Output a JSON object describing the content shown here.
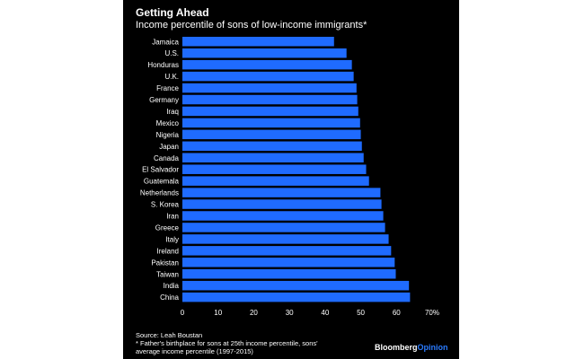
{
  "header": {
    "title": "Getting Ahead",
    "subtitle": "Income percentile of sons of low-income immigrants*"
  },
  "footer": {
    "source": "Source: Leah Boustan",
    "note": "* Father's birthplace for sons at 25th income percentile, sons' average income percentile (1997-2015)",
    "brand_main": "Bloomberg",
    "brand_accent": "Opinion"
  },
  "colors": {
    "background": "#000000",
    "bar": "#1f6bff",
    "text": "#ffffff",
    "brand_accent": "#2a7bff"
  },
  "chart_data": {
    "type": "bar",
    "orientation": "horizontal",
    "title": "Getting Ahead",
    "subtitle": "Income percentile of sons of low-income immigrants*",
    "xlabel": "",
    "ylabel": "",
    "xlim": [
      0,
      70
    ],
    "tick_values": [
      0,
      10,
      20,
      30,
      40,
      50,
      60,
      70
    ],
    "tick_labels": [
      "0",
      "10",
      "20",
      "30",
      "40",
      "50",
      "60",
      "70%"
    ],
    "grid": false,
    "categories": [
      "Jamaica",
      "U.S.",
      "Honduras",
      "U.K.",
      "France",
      "Germany",
      "Iraq",
      "Mexico",
      "Nigeria",
      "Japan",
      "Canada",
      "El Salvador",
      "Guatemala",
      "Netherlands",
      "S. Korea",
      "Iran",
      "Greece",
      "Italy",
      "Ireland",
      "Pakistan",
      "Taiwan",
      "India",
      "China"
    ],
    "values": [
      42.5,
      46,
      47.5,
      48,
      48.8,
      49,
      49.3,
      49.8,
      50,
      50.3,
      50.8,
      51.5,
      52.3,
      55.5,
      55.8,
      56.3,
      56.8,
      57.8,
      58.5,
      59.5,
      59.8,
      63.5,
      63.8
    ]
  }
}
